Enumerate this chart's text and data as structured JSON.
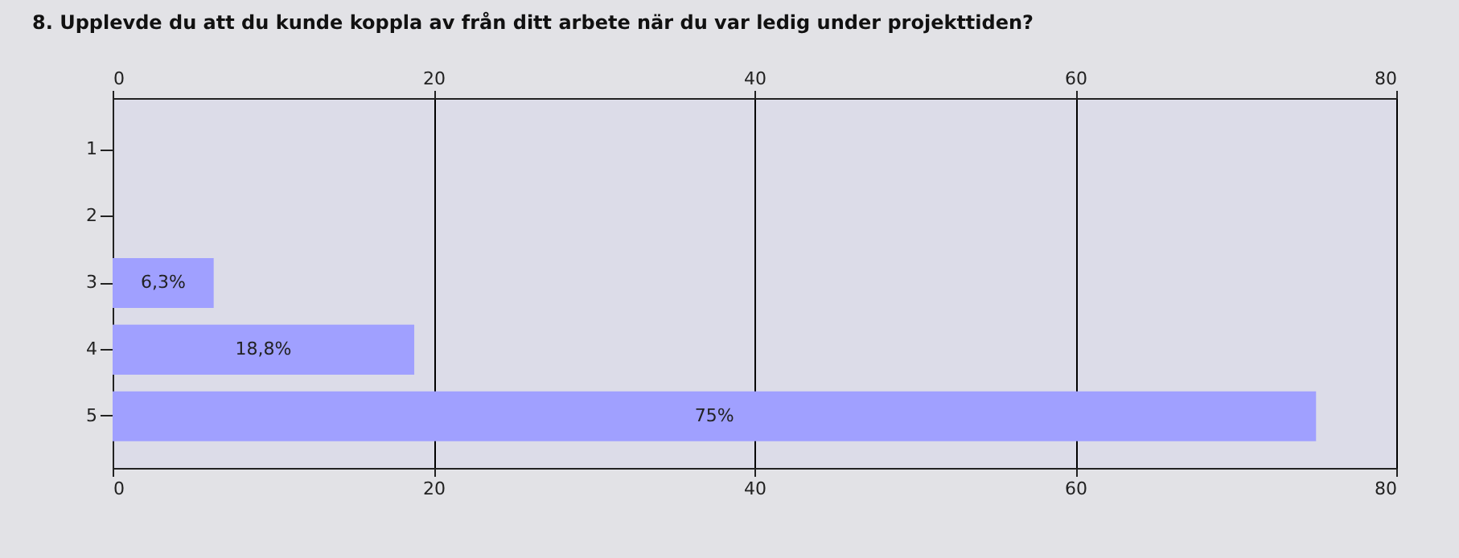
{
  "chart_data": {
    "type": "bar",
    "orientation": "horizontal",
    "title": "8. Upplevde du att du kunde koppla av från ditt arbete när du var ledig under projekttiden?",
    "categories": [
      "1",
      "2",
      "3",
      "4",
      "5"
    ],
    "values": [
      0,
      0,
      6.3,
      18.8,
      75
    ],
    "value_labels": [
      null,
      null,
      "6,3%",
      "18,8%",
      "75%"
    ],
    "color": "#a0a0ff",
    "xlim": [
      0,
      80
    ],
    "xticks": [
      0,
      20,
      40,
      60,
      80
    ],
    "x2lim": [
      0,
      80
    ],
    "x2ticks": [
      0,
      20,
      40,
      60,
      80
    ],
    "grid": "x"
  }
}
